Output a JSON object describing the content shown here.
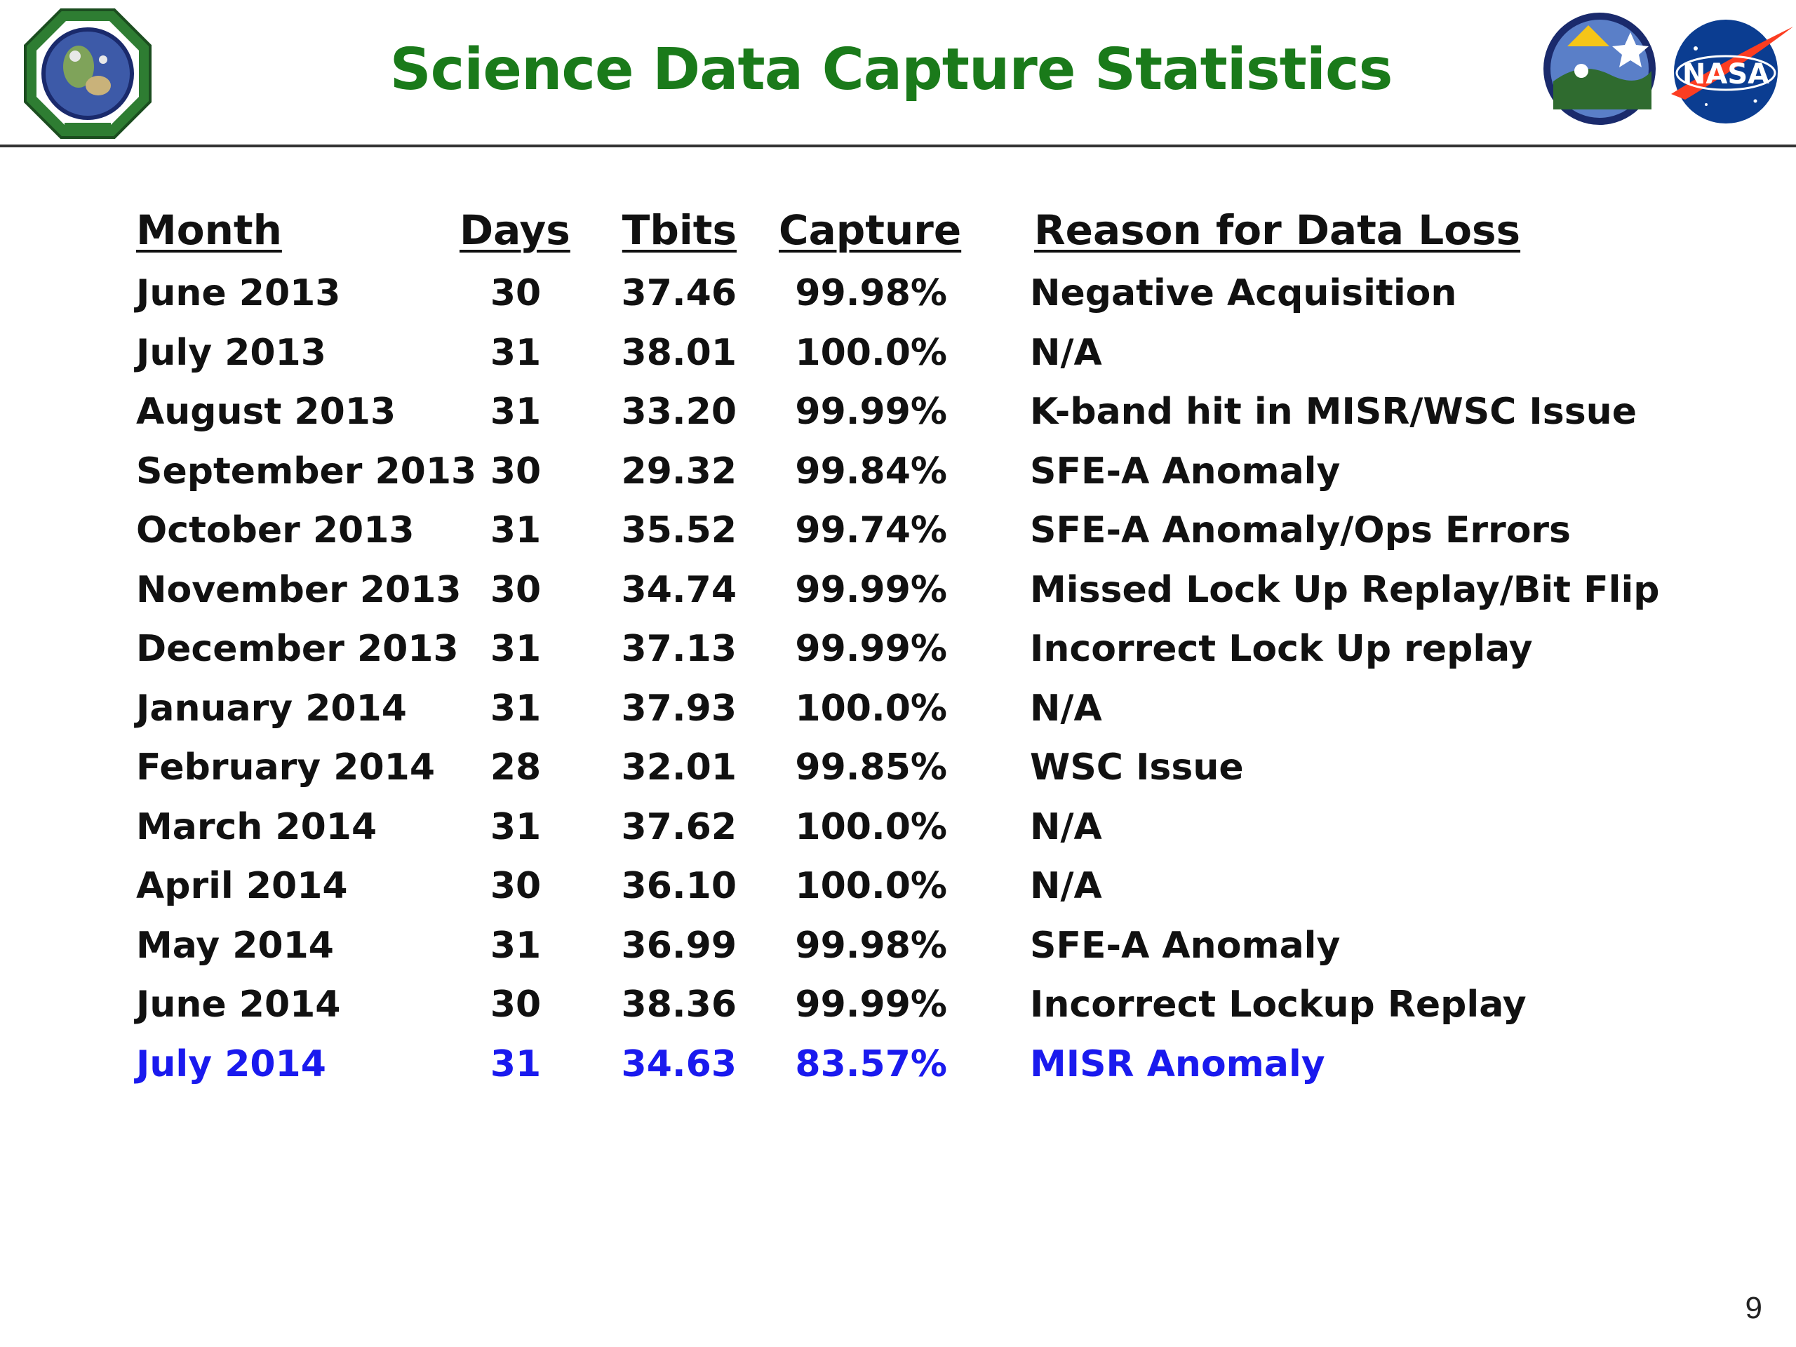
{
  "slide": {
    "title": "Science Data Capture Statistics",
    "page_number": "9"
  },
  "logos": {
    "left": "esmo-logo",
    "right_1": "eos-terra-logo",
    "right_2": "nasa-logo"
  },
  "colors": {
    "title": "#1a7a1a",
    "highlight_row": "#1a1aee",
    "text": "#111111"
  },
  "table": {
    "headers": {
      "month": "Month",
      "days": "Days",
      "tbits": "Tbits",
      "capture": "Capture",
      "reason": "Reason for Data Loss"
    },
    "rows": [
      {
        "month": "June 2013",
        "days": "30",
        "tbits": "37.46",
        "capture": "99.98%",
        "reason": "Negative Acquisition"
      },
      {
        "month": "July  2013",
        "days": "31",
        "tbits": "38.01",
        "capture": "100.0%",
        "reason": "N/A"
      },
      {
        "month": "August  2013",
        "days": "31",
        "tbits": "33.20",
        "capture": "99.99%",
        "reason": "K-band hit in MISR/WSC Issue"
      },
      {
        "month": "September 2013",
        "days": "30",
        "tbits": "29.32",
        "capture": "99.84%",
        "reason": "SFE-A Anomaly"
      },
      {
        "month": "October 2013",
        "days": "31",
        "tbits": "35.52",
        "capture": "99.74%",
        "reason": "SFE-A Anomaly/Ops Errors"
      },
      {
        "month": "November 2013",
        "days": "30",
        "tbits": "34.74",
        "capture": "99.99%",
        "reason": "Missed Lock Up Replay/Bit Flip"
      },
      {
        "month": "December 2013",
        "days": "31",
        "tbits": "37.13",
        "capture": "99.99%",
        "reason": "Incorrect Lock Up replay"
      },
      {
        "month": "January 2014",
        "days": "31",
        "tbits": "37.93",
        "capture": "100.0%",
        "reason": "N/A"
      },
      {
        "month": "February 2014",
        "days": "28",
        "tbits": "32.01",
        "capture": "99.85%",
        "reason": "WSC Issue"
      },
      {
        "month": "March 2014",
        "days": "31",
        "tbits": "37.62",
        "capture": "100.0%",
        "reason": "N/A"
      },
      {
        "month": "April 2014",
        "days": "30",
        "tbits": "36.10",
        "capture": "100.0%",
        "reason": "N/A"
      },
      {
        "month": "May 2014",
        "days": "31",
        "tbits": "36.99",
        "capture": "99.98%",
        "reason": "SFE-A Anomaly"
      },
      {
        "month": "June 2014",
        "days": "30",
        "tbits": "38.36",
        "capture": "99.99%",
        "reason": "Incorrect Lockup Replay"
      },
      {
        "month": "July 2014",
        "days": "31",
        "tbits": "34.63",
        "capture": "83.57%",
        "reason": "MISR Anomaly",
        "highlight": true
      }
    ]
  }
}
